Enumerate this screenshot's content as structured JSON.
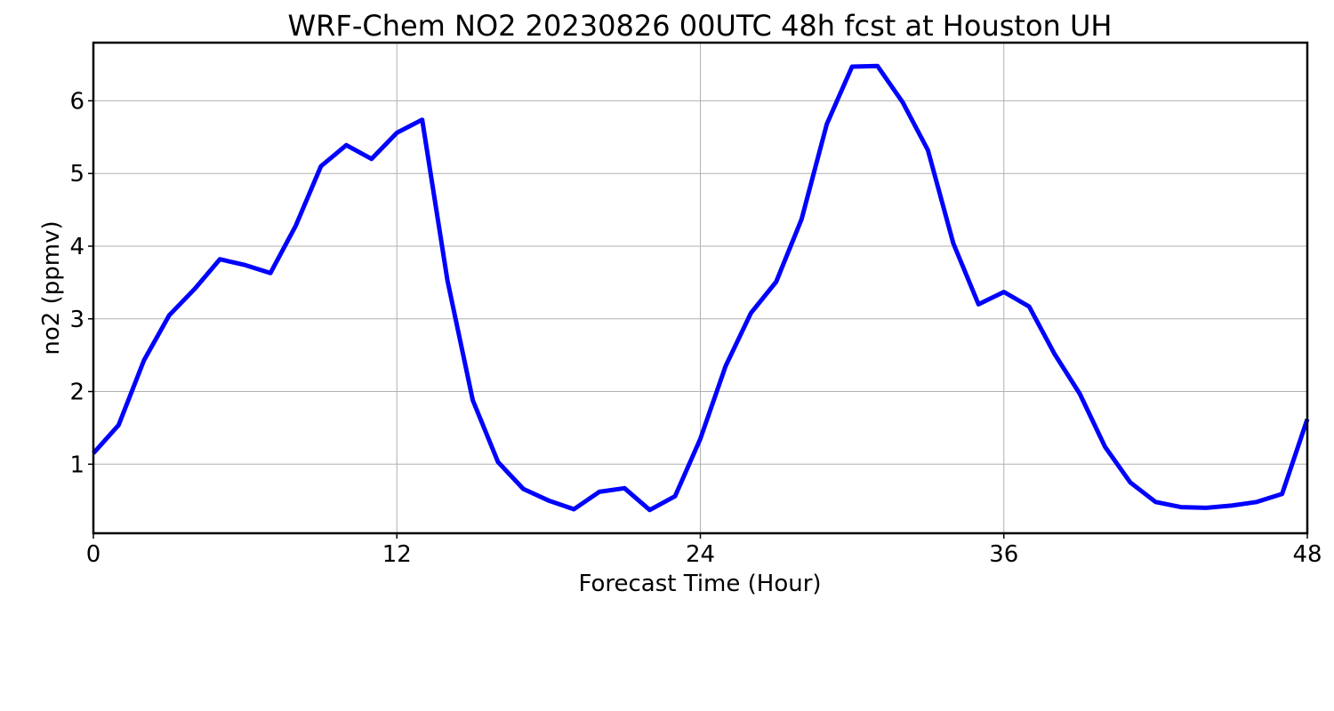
{
  "chart_data": {
    "type": "line",
    "title": "WRF-Chem NO2  20230826 00UTC 48h fcst at Houston UH",
    "xlabel": "Forecast Time (Hour)",
    "ylabel": "no2  (ppmv)",
    "xlim": [
      0,
      48
    ],
    "ylim": [
      0.05,
      6.8
    ],
    "xticks": [
      0,
      12,
      24,
      36,
      48
    ],
    "yticks": [
      1,
      2,
      3,
      4,
      5,
      6
    ],
    "grid": true,
    "legend": "none",
    "series": [
      {
        "color": "#0000ff",
        "x": [
          0,
          1,
          2,
          3,
          4,
          5,
          6,
          7,
          8,
          9,
          10,
          11,
          12,
          13,
          14,
          15,
          16,
          17,
          18,
          19,
          20,
          21,
          22,
          23,
          24,
          25,
          26,
          27,
          28,
          29,
          30,
          31,
          32,
          33,
          34,
          35,
          36,
          37,
          38,
          39,
          40,
          41,
          42,
          43,
          44,
          45,
          46,
          47,
          48
        ],
        "y": [
          1.15,
          1.54,
          2.43,
          3.05,
          3.41,
          3.82,
          3.74,
          3.63,
          4.28,
          5.1,
          5.39,
          5.2,
          5.56,
          5.74,
          3.53,
          1.88,
          1.03,
          0.66,
          0.5,
          0.38,
          0.62,
          0.67,
          0.37,
          0.56,
          1.35,
          2.35,
          3.08,
          3.51,
          4.37,
          5.68,
          6.47,
          6.48,
          5.98,
          5.32,
          4.04,
          3.2,
          3.37,
          3.17,
          2.52,
          1.97,
          1.24,
          0.75,
          0.48,
          0.41,
          0.4,
          0.43,
          0.48,
          0.59,
          1.62
        ]
      }
    ]
  }
}
